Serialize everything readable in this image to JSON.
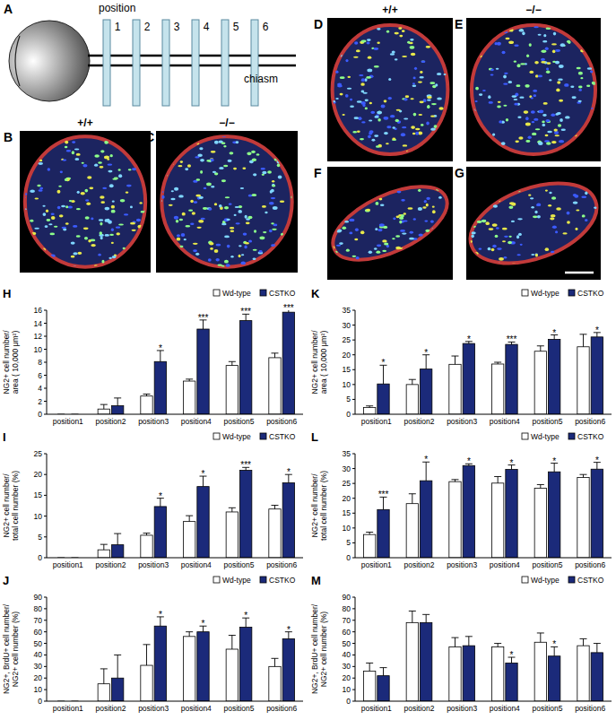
{
  "diagram": {
    "label": "A",
    "title": "position",
    "positions": [
      "1",
      "2",
      "3",
      "4",
      "5",
      "6"
    ],
    "end_label": "chiasm"
  },
  "images": [
    {
      "label": "B",
      "genotype": "+/+"
    },
    {
      "label": "C",
      "genotype": "−/−"
    },
    {
      "label": "D",
      "genotype": "+/+"
    },
    {
      "label": "E",
      "genotype": "−/−"
    },
    {
      "label": "F"
    },
    {
      "label": "G"
    }
  ],
  "chart_data": [
    {
      "type": "bar",
      "title": "H",
      "y_label": [
        "NG2+ cell number/",
        "area ( 10,000 μm²)"
      ],
      "categories": [
        "position1",
        "position2",
        "position3",
        "position4",
        "position5",
        "position6"
      ],
      "series": [
        {
          "name": "Wd-type",
          "color": "#ffffff",
          "values": [
            0,
            0.8,
            2.8,
            5.1,
            7.5,
            8.7
          ],
          "errors": [
            0,
            0.7,
            0.3,
            0.3,
            0.6,
            0.7
          ]
        },
        {
          "name": "CSTKO",
          "color": "#1b2a7a",
          "values": [
            0,
            1.3,
            8.1,
            13.1,
            14.4,
            15.7
          ],
          "errors": [
            0,
            1.2,
            1.7,
            1.4,
            1.0,
            1.5
          ]
        }
      ],
      "significance": [
        null,
        null,
        "*",
        "***",
        "***",
        "***"
      ],
      "ylim": [
        0,
        16
      ],
      "yticks": [
        0,
        2,
        4,
        6,
        8,
        10,
        12,
        14,
        16
      ],
      "grid": false,
      "legend": "top-right"
    },
    {
      "type": "bar",
      "title": "I",
      "y_label": [
        "NG2+ cell number/",
        "total cell number (%)"
      ],
      "categories": [
        "position1",
        "position2",
        "position3",
        "position4",
        "position5",
        "position6"
      ],
      "series": [
        {
          "name": "Wd-type",
          "color": "#ffffff",
          "values": [
            0,
            1.9,
            5.4,
            8.7,
            11,
            11.7
          ],
          "errors": [
            0,
            1.3,
            0.5,
            1.4,
            1.0,
            0.9
          ]
        },
        {
          "name": "CSTKO",
          "color": "#1b2a7a",
          "values": [
            0,
            3.1,
            12.3,
            17.1,
            21,
            18
          ],
          "errors": [
            0,
            2.7,
            2.0,
            2.5,
            0.7,
            2.0
          ]
        }
      ],
      "significance": [
        null,
        null,
        "*",
        "*",
        "***",
        "*"
      ],
      "ylim": [
        0,
        25
      ],
      "yticks": [
        0,
        5,
        10,
        15,
        20,
        25
      ],
      "grid": false,
      "legend": "top-right"
    },
    {
      "type": "bar",
      "title": "J",
      "y_label": [
        "NG2+, BrdU+ cell number/",
        "NG2+ cell number (%)"
      ],
      "categories": [
        "position1",
        "position2",
        "position3",
        "position4",
        "position5",
        "position6"
      ],
      "series": [
        {
          "name": "Wd-type",
          "color": "#ffffff",
          "values": [
            0,
            15,
            31,
            56,
            45,
            30
          ],
          "errors": [
            0,
            13,
            18,
            4,
            12,
            7
          ]
        },
        {
          "name": "CSTKO",
          "color": "#1b2a7a",
          "values": [
            0,
            20,
            65,
            60,
            64,
            54
          ],
          "errors": [
            0,
            20,
            8,
            5,
            8,
            6
          ]
        }
      ],
      "significance": [
        null,
        null,
        "*",
        "*",
        "*",
        "*"
      ],
      "ylim": [
        0,
        90
      ],
      "yticks": [
        0,
        10,
        20,
        30,
        40,
        50,
        60,
        70,
        80,
        90
      ],
      "grid": false,
      "legend": "top-right"
    },
    {
      "type": "bar",
      "title": "K",
      "y_label": [
        "NG2+ cell number/",
        "area ( 10,000 μm²)"
      ],
      "categories": [
        "position1",
        "position2",
        "position3",
        "position4",
        "position5",
        "position6"
      ],
      "series": [
        {
          "name": "Wd-type",
          "color": "#ffffff",
          "values": [
            2.3,
            10,
            16.8,
            16.9,
            21.2,
            22.7
          ],
          "errors": [
            0.5,
            1.7,
            2.8,
            0.6,
            1.8,
            4.2
          ]
        },
        {
          "name": "CSTKO",
          "color": "#1b2a7a",
          "values": [
            10.2,
            15.2,
            23.8,
            23.5,
            25.2,
            26
          ],
          "errors": [
            6.3,
            4.8,
            0.7,
            0.8,
            1.5,
            1.5
          ]
        }
      ],
      "significance": [
        "*",
        "*",
        "*",
        "***",
        "*",
        "*"
      ],
      "ylim": [
        0,
        35
      ],
      "yticks": [
        0,
        5,
        10,
        15,
        20,
        25,
        30,
        35
      ],
      "grid": false,
      "legend": "top-right"
    },
    {
      "type": "bar",
      "title": "L",
      "y_label": [
        "NG2+ cell number/",
        "total cell number (%)"
      ],
      "categories": [
        "position1",
        "position2",
        "position3",
        "position4",
        "position5",
        "position6"
      ],
      "series": [
        {
          "name": "Wd-type",
          "color": "#ffffff",
          "values": [
            7.8,
            18.2,
            25.6,
            25.1,
            23.4,
            27
          ],
          "errors": [
            0.8,
            3.3,
            0.7,
            2.2,
            1.2,
            1.0
          ]
        },
        {
          "name": "CSTKO",
          "color": "#1b2a7a",
          "values": [
            16.2,
            25.9,
            31,
            29.7,
            28.9,
            29.8
          ],
          "errors": [
            4.2,
            6.3,
            0.6,
            1.5,
            2.9,
            2.3
          ]
        }
      ],
      "significance": [
        "***",
        "*",
        "*",
        "*",
        "*",
        "*"
      ],
      "ylim": [
        0,
        35
      ],
      "yticks": [
        0,
        5,
        10,
        15,
        20,
        25,
        30,
        35
      ],
      "grid": false,
      "legend": "top-right"
    },
    {
      "type": "bar",
      "title": "M",
      "y_label": [
        "NG2+, BrdU+ cell number/",
        "NG2+ cell number (%)"
      ],
      "categories": [
        "position1",
        "position2",
        "position3",
        "position4",
        "position5",
        "position6"
      ],
      "series": [
        {
          "name": "Wd-type",
          "color": "#ffffff",
          "values": [
            26,
            68,
            47,
            47,
            51,
            48
          ],
          "errors": [
            7,
            10,
            8,
            3,
            8,
            6
          ]
        },
        {
          "name": "CSTKO",
          "color": "#1b2a7a",
          "values": [
            22,
            68,
            48,
            33,
            39,
            42
          ],
          "errors": [
            7,
            7,
            8,
            5,
            8,
            8
          ]
        }
      ],
      "significance": [
        null,
        null,
        null,
        "*",
        "*",
        null
      ],
      "ylim": [
        0,
        90
      ],
      "yticks": [
        0,
        10,
        20,
        30,
        40,
        50,
        60,
        70,
        80,
        90
      ],
      "grid": false,
      "legend": "top-right"
    }
  ]
}
